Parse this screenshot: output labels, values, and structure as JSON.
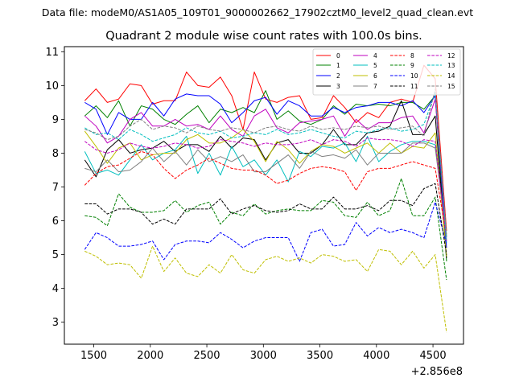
{
  "suptitle": "Data file: modeM0/AS1A05_109T01_9000002662_17902cztM0_level2_quad_clean.evt",
  "chart_data": {
    "type": "line",
    "title": "Quadrant 2 module wise count rates with 100.0s bins.",
    "xlabel": "",
    "ylabel": "",
    "x_offset_label": "+2.856e8",
    "xlim": [
      1240,
      4770
    ],
    "ylim": [
      2.35,
      11.15
    ],
    "x_ticks": [
      1500,
      2000,
      2500,
      3000,
      3500,
      4000,
      4500
    ],
    "x_tick_labels": [
      "1500",
      "2000",
      "2500",
      "3000",
      "3500",
      "4000",
      "4500"
    ],
    "y_ticks": [
      3,
      4,
      5,
      6,
      7,
      8,
      9,
      10,
      11
    ],
    "y_tick_labels": [
      "3",
      "4",
      "5",
      "6",
      "7",
      "8",
      "9",
      "10",
      "11"
    ],
    "legend_position": "top-right",
    "x": [
      1420,
      1520,
      1620,
      1720,
      1820,
      1920,
      2020,
      2120,
      2220,
      2320,
      2420,
      2520,
      2620,
      2720,
      2820,
      2920,
      3020,
      3120,
      3220,
      3320,
      3420,
      3520,
      3620,
      3720,
      3820,
      3920,
      4020,
      4120,
      4220,
      4320,
      4420,
      4520,
      4620
    ],
    "series": [
      {
        "name": "0",
        "color": "#ff0000",
        "dash": "solid",
        "values": [
          9.55,
          9.9,
          9.5,
          9.6,
          10.05,
          10.0,
          9.45,
          9.55,
          9.55,
          10.4,
          10.0,
          9.95,
          10.25,
          9.7,
          8.7,
          10.4,
          9.6,
          9.5,
          9.65,
          9.7,
          9.0,
          9.05,
          9.7,
          9.35,
          8.9,
          9.2,
          9.05,
          9.5,
          9.6,
          9.5,
          10.6,
          10.2,
          5.7
        ]
      },
      {
        "name": "1",
        "color": "#008000",
        "dash": "solid",
        "values": [
          9.1,
          9.4,
          9.05,
          9.55,
          8.8,
          9.4,
          9.3,
          9.0,
          8.85,
          9.15,
          9.4,
          8.9,
          9.3,
          9.2,
          9.35,
          9.2,
          9.85,
          9.0,
          9.25,
          8.95,
          8.85,
          9.0,
          9.4,
          9.15,
          9.45,
          9.4,
          9.45,
          9.4,
          9.5,
          9.5,
          9.3,
          9.7,
          4.8
        ]
      },
      {
        "name": "2",
        "color": "#0000ff",
        "dash": "solid",
        "values": [
          9.5,
          9.3,
          8.55,
          9.2,
          9.0,
          9.0,
          9.5,
          9.1,
          9.6,
          9.75,
          9.7,
          9.7,
          9.45,
          8.9,
          9.2,
          9.55,
          9.65,
          9.15,
          9.55,
          9.4,
          9.1,
          9.1,
          9.35,
          9.2,
          9.35,
          9.4,
          9.5,
          9.5,
          9.4,
          9.55,
          9.2,
          9.7,
          5.2
        ]
      },
      {
        "name": "3",
        "color": "#000000",
        "dash": "solid",
        "values": [
          7.8,
          7.3,
          8.1,
          8.4,
          8.0,
          8.1,
          8.15,
          8.35,
          8.05,
          8.25,
          8.25,
          8.05,
          8.5,
          8.15,
          8.45,
          8.4,
          7.8,
          8.3,
          8.4,
          8.0,
          8.0,
          8.25,
          8.7,
          8.25,
          8.25,
          8.6,
          8.65,
          8.8,
          9.55,
          8.55,
          8.55,
          9.1,
          4.9
        ]
      },
      {
        "name": "4",
        "color": "#bf00bf",
        "dash": "solid",
        "values": [
          9.1,
          8.8,
          8.3,
          8.5,
          9.0,
          9.2,
          8.8,
          8.8,
          9.0,
          8.8,
          8.85,
          8.7,
          9.1,
          8.7,
          8.5,
          9.1,
          9.3,
          8.75,
          8.6,
          8.9,
          8.95,
          9.0,
          9.1,
          8.5,
          9.0,
          8.7,
          8.9,
          8.9,
          9.05,
          9.1,
          8.6,
          9.6,
          5.5
        ]
      },
      {
        "name": "5",
        "color": "#00bfbf",
        "dash": "solid",
        "values": [
          8.05,
          7.4,
          7.5,
          7.35,
          7.8,
          8.25,
          7.8,
          8.0,
          8.1,
          8.5,
          7.4,
          8.0,
          7.35,
          8.2,
          7.6,
          7.8,
          7.35,
          7.8,
          7.15,
          8.05,
          7.9,
          8.2,
          8.15,
          8.3,
          7.75,
          8.5,
          7.75,
          8.05,
          8.25,
          8.35,
          8.35,
          8.25,
          5.35
        ]
      },
      {
        "name": "6",
        "color": "#bfbf00",
        "dash": "solid",
        "values": [
          8.65,
          8.2,
          7.7,
          8.15,
          8.3,
          7.8,
          7.95,
          8.0,
          8.0,
          8.4,
          8.55,
          8.3,
          8.3,
          8.45,
          8.7,
          8.35,
          7.75,
          8.35,
          8.1,
          7.7,
          8.05,
          8.25,
          8.2,
          8.0,
          8.15,
          8.3,
          8.0,
          8.3,
          8.0,
          8.2,
          8.15,
          8.6,
          4.95
        ]
      },
      {
        "name": "7",
        "color": "#808080",
        "dash": "solid",
        "values": [
          7.55,
          7.45,
          7.8,
          7.45,
          7.5,
          7.75,
          8.15,
          7.75,
          8.05,
          7.65,
          8.1,
          7.75,
          7.9,
          7.75,
          7.95,
          7.45,
          7.45,
          7.7,
          7.95,
          7.55,
          8.05,
          7.9,
          7.95,
          7.85,
          8.1,
          7.65,
          8.0,
          8.0,
          8.0,
          8.3,
          8.3,
          8.15,
          5.55
        ]
      },
      {
        "name": "8",
        "color": "#ff0000",
        "dash": "dashed",
        "values": [
          7.05,
          7.4,
          7.6,
          7.65,
          7.85,
          8.05,
          7.95,
          7.55,
          7.25,
          7.5,
          7.65,
          7.85,
          7.7,
          7.55,
          7.5,
          7.5,
          7.35,
          7.1,
          7.2,
          7.4,
          7.55,
          7.6,
          7.55,
          7.45,
          6.9,
          7.45,
          7.55,
          7.55,
          7.65,
          7.75,
          7.65,
          7.55,
          5.5
        ]
      },
      {
        "name": "9",
        "color": "#008000",
        "dash": "dashed",
        "values": [
          6.15,
          6.1,
          5.85,
          6.8,
          6.4,
          6.25,
          6.25,
          6.3,
          6.6,
          6.25,
          6.45,
          6.55,
          5.9,
          6.25,
          6.15,
          6.5,
          6.2,
          6.3,
          6.35,
          6.3,
          6.3,
          6.6,
          6.55,
          6.15,
          6.1,
          6.55,
          6.15,
          6.3,
          7.25,
          6.15,
          6.15,
          6.7,
          4.25
        ]
      },
      {
        "name": "10",
        "color": "#0000ff",
        "dash": "dashed",
        "values": [
          5.15,
          5.65,
          5.5,
          5.25,
          5.25,
          5.3,
          5.4,
          4.85,
          5.3,
          5.4,
          5.4,
          5.35,
          5.65,
          5.45,
          5.2,
          5.4,
          5.5,
          5.5,
          5.5,
          4.8,
          5.65,
          5.75,
          5.25,
          5.3,
          5.95,
          5.55,
          5.8,
          5.65,
          5.75,
          5.65,
          5.5,
          6.55,
          5.3
        ]
      },
      {
        "name": "11",
        "color": "#000000",
        "dash": "dashed",
        "values": [
          6.5,
          6.5,
          6.2,
          6.35,
          6.35,
          6.25,
          5.9,
          6.05,
          5.9,
          6.35,
          6.35,
          6.35,
          6.65,
          6.2,
          6.35,
          6.45,
          6.3,
          6.25,
          6.3,
          6.5,
          6.35,
          6.35,
          6.7,
          6.35,
          6.35,
          6.45,
          6.3,
          6.6,
          6.6,
          6.45,
          6.95,
          7.1,
          5.0
        ]
      },
      {
        "name": "12",
        "color": "#bf00bf",
        "dash": "dashed",
        "values": [
          8.35,
          8.1,
          8.0,
          8.1,
          8.3,
          8.2,
          8.15,
          8.2,
          8.3,
          8.25,
          8.15,
          8.2,
          8.4,
          8.35,
          8.3,
          8.2,
          8.3,
          8.25,
          8.25,
          8.3,
          8.4,
          8.25,
          8.4,
          8.35,
          8.2,
          8.45,
          8.4,
          8.4,
          8.35,
          8.2,
          8.4,
          8.35,
          5.4
        ]
      },
      {
        "name": "13",
        "color": "#00bfbf",
        "dash": "dashed",
        "values": [
          8.75,
          8.55,
          8.6,
          8.4,
          8.7,
          8.55,
          8.35,
          8.45,
          8.55,
          8.75,
          8.6,
          8.55,
          8.65,
          8.45,
          8.5,
          8.6,
          8.55,
          8.7,
          8.55,
          8.6,
          8.7,
          8.6,
          8.5,
          8.45,
          8.65,
          8.6,
          8.7,
          8.75,
          8.65,
          8.7,
          8.85,
          9.8,
          5.45
        ]
      },
      {
        "name": "14",
        "color": "#bfbf00",
        "dash": "dashed",
        "values": [
          5.1,
          4.95,
          4.7,
          4.75,
          4.7,
          4.3,
          5.25,
          4.5,
          4.9,
          4.45,
          4.35,
          4.7,
          4.45,
          5.0,
          4.55,
          4.45,
          4.85,
          4.95,
          4.8,
          4.9,
          4.75,
          5.0,
          4.95,
          4.8,
          4.85,
          4.5,
          5.15,
          5.1,
          4.7,
          5.1,
          4.6,
          5.0,
          2.7
        ]
      },
      {
        "name": "15",
        "color": "#808080",
        "dash": "dashed",
        "values": [
          8.7,
          8.6,
          8.4,
          8.5,
          8.8,
          9.0,
          8.7,
          8.8,
          8.75,
          8.6,
          8.8,
          8.7,
          8.65,
          8.75,
          8.7,
          8.6,
          8.75,
          8.8,
          8.7,
          8.65,
          8.8,
          8.7,
          8.75,
          8.7,
          8.8,
          8.75,
          8.8,
          8.7,
          8.75,
          8.8,
          8.5,
          9.9,
          5.6
        ]
      }
    ]
  }
}
